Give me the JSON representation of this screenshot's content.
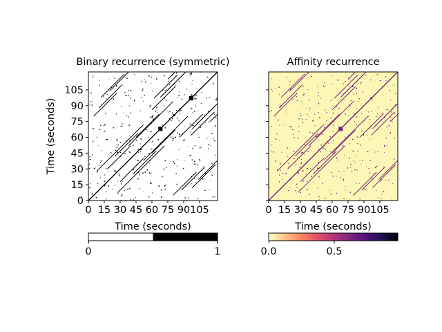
{
  "chart_data": [
    {
      "type": "heatmap",
      "title": "Binary recurrence (symmetric)",
      "xlabel": "Time (seconds)",
      "ylabel": "Time (seconds)",
      "xlim": [
        0,
        122
      ],
      "ylim": [
        0,
        122
      ],
      "x_ticks": [
        "0",
        "15",
        "30",
        "45",
        "60",
        "75",
        "90",
        "105"
      ],
      "y_ticks": [
        "0",
        "15",
        "30",
        "45",
        "60",
        "75",
        "90",
        "105"
      ],
      "colorbar": {
        "min": 0,
        "max": 1,
        "ticks": [
          "0",
          "1"
        ],
        "colors": [
          "#ffffff",
          "#000000"
        ],
        "type": "binary"
      },
      "background_color": "#ffffff",
      "mark_color": "#000000",
      "diagonal_segments": [
        {
          "t1": 0,
          "t2": 122
        },
        {
          "t1": 8,
          "t2": 28
        },
        {
          "t1": 18,
          "t2": 30
        },
        {
          "t1": 25,
          "t2": 42
        },
        {
          "t1": 30,
          "t2": 50
        },
        {
          "t1": 38,
          "t2": 52
        },
        {
          "t1": 45,
          "t2": 60
        },
        {
          "t1": 58,
          "t2": 72
        },
        {
          "t1": 60,
          "t2": 86
        },
        {
          "t1": 62,
          "t2": 97
        },
        {
          "t1": 68,
          "t2": 98
        },
        {
          "t1": 70,
          "t2": 100
        },
        {
          "t1": 75,
          "t2": 115
        },
        {
          "t1": 5,
          "t2": 80
        },
        {
          "t1": 10,
          "t2": 88
        },
        {
          "t1": 12,
          "t2": 98
        },
        {
          "t1": 20,
          "t2": 104
        }
      ],
      "blocks": [
        {
          "t": 68,
          "half": 2
        },
        {
          "t": 97,
          "half": 2
        },
        {
          "t": 81,
          "half": 1
        }
      ]
    },
    {
      "type": "heatmap",
      "title": "Affinity recurrence",
      "xlabel": "Time (seconds)",
      "xlim": [
        0,
        122
      ],
      "ylim": [
        0,
        122
      ],
      "x_ticks": [
        "0",
        "15",
        "30",
        "45",
        "60",
        "75",
        "90",
        "105"
      ],
      "y_ticks": [
        "",
        "",
        "",
        "",
        "",
        "",
        "",
        ""
      ],
      "colorbar": {
        "min": 0.0,
        "max": 0.93,
        "ticks": [
          "0.0",
          "0.5"
        ],
        "colors": [
          "#fcfdbf",
          "#fec287",
          "#fb8761",
          "#e65164",
          "#b5367a",
          "#812581",
          "#51127c",
          "#221150",
          "#000004"
        ],
        "type": "magma"
      },
      "background_color": "#fcf7b6",
      "mark_color": "#7a2274",
      "diagonal_segments": [
        {
          "t1": 0,
          "t2": 122
        },
        {
          "t1": 8,
          "t2": 28
        },
        {
          "t1": 18,
          "t2": 30
        },
        {
          "t1": 25,
          "t2": 42
        },
        {
          "t1": 30,
          "t2": 50
        },
        {
          "t1": 38,
          "t2": 52
        },
        {
          "t1": 45,
          "t2": 60
        },
        {
          "t1": 58,
          "t2": 72
        },
        {
          "t1": 60,
          "t2": 86
        },
        {
          "t1": 62,
          "t2": 97
        },
        {
          "t1": 68,
          "t2": 98
        },
        {
          "t1": 70,
          "t2": 100
        },
        {
          "t1": 75,
          "t2": 115
        },
        {
          "t1": 5,
          "t2": 80
        },
        {
          "t1": 10,
          "t2": 88
        },
        {
          "t1": 12,
          "t2": 98
        },
        {
          "t1": 20,
          "t2": 104
        }
      ],
      "blocks": [
        {
          "t": 68,
          "half": 2
        },
        {
          "t": 97,
          "half": 1
        }
      ]
    }
  ]
}
